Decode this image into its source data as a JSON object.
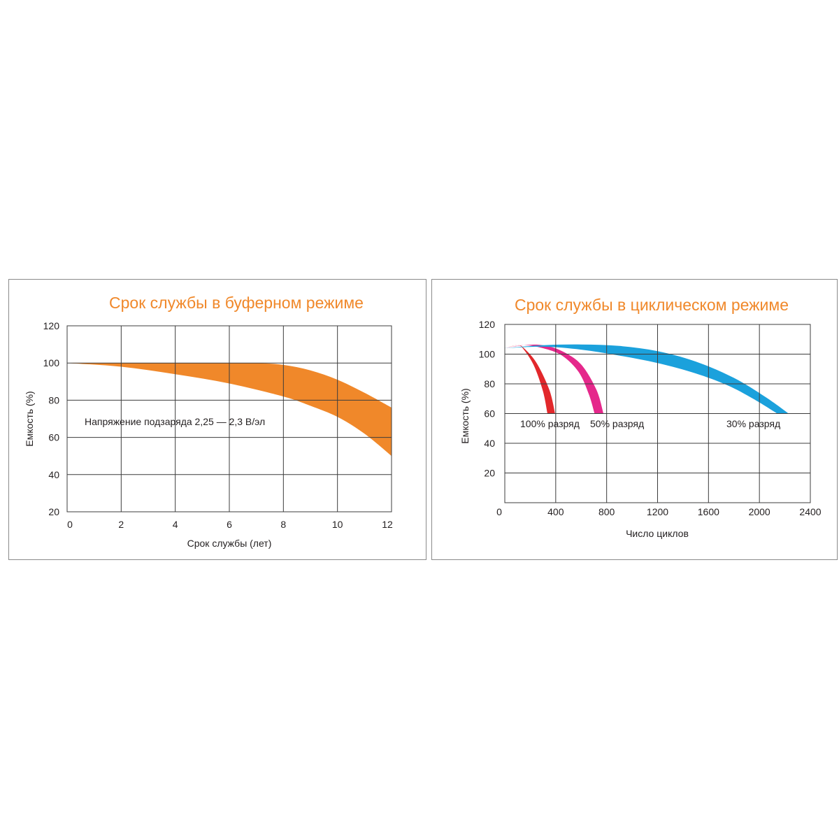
{
  "chart_data": [
    {
      "type": "area",
      "title": "Срок службы в буферном режиме",
      "xlabel": "Срок службы (лет)",
      "ylabel": "Емкость (%)",
      "x_ticks": [
        0,
        2,
        4,
        6,
        8,
        10,
        12
      ],
      "y_ticks": [
        20,
        40,
        60,
        80,
        100,
        120
      ],
      "xlim": [
        0,
        12
      ],
      "ylim": [
        20,
        120
      ],
      "grid": true,
      "annotation": "Напряжение подзаряда 2,25 — 2,3 В/эл",
      "colors": {
        "band": "#f0882a",
        "title": "#f0882a"
      },
      "series": [
        {
          "upper": {
            "x": [
              0,
              2,
              4,
              6,
              7,
              8,
              9,
              10,
              11,
              12
            ],
            "y": [
              100,
              100,
              100,
              100,
              100,
              99,
              96,
              91,
              84,
              76
            ]
          },
          "lower": {
            "x": [
              0,
              2,
              4,
              6,
              8,
              9,
              10,
              11,
              12
            ],
            "y": [
              100,
              98,
              94,
              89,
              82,
              77,
              71,
              62,
              50
            ]
          }
        }
      ]
    },
    {
      "type": "area",
      "title": "Срок службы в циклическом режиме",
      "xlabel": "Число циклов",
      "ylabel": "Емкость (%)",
      "x_ticks": [
        0,
        400,
        800,
        1200,
        1600,
        2000,
        2400
      ],
      "y_ticks": [
        20,
        40,
        60,
        80,
        100,
        120
      ],
      "xlim": [
        0,
        2400
      ],
      "ylim": [
        0,
        120
      ],
      "grid": true,
      "colors": {
        "title": "#f0882a"
      },
      "series": [
        {
          "name": "100% разряд",
          "color": "#e2282b",
          "upper": {
            "x": [
              0,
              100,
              150,
              250,
              350,
              395
            ],
            "y": [
              104,
              106,
              104,
              94,
              76,
              60
            ]
          },
          "lower": {
            "x": [
              0,
              100,
              150,
              230,
              300,
              335
            ],
            "y": [
              104,
              106,
              103,
              92,
              75,
              60
            ]
          }
        },
        {
          "name": "50% разряд",
          "color": "#e5288b",
          "upper": {
            "x": [
              0,
              150,
              300,
              450,
              600,
              720,
              775
            ],
            "y": [
              104,
              106,
              106,
              102,
              93,
              76,
              60
            ]
          },
          "lower": {
            "x": [
              0,
              150,
              300,
              450,
              580,
              660,
              705
            ],
            "y": [
              104,
              106,
              104,
              99,
              88,
              73,
              60
            ]
          }
        },
        {
          "name": "30% разряд",
          "color": "#1ba1dc",
          "upper": {
            "x": [
              0,
              300,
              600,
              900,
              1200,
              1500,
              1800,
              2050,
              2230
            ],
            "y": [
              104,
              106,
              106.5,
              105.5,
              102,
              95,
              84,
              71,
              60
            ]
          },
          "lower": {
            "x": [
              0,
              300,
              600,
              900,
              1200,
              1500,
              1750,
              1950,
              2140
            ],
            "y": [
              104,
              105,
              103,
              99,
              94,
              87,
              79,
              70,
              60
            ]
          }
        }
      ]
    }
  ]
}
